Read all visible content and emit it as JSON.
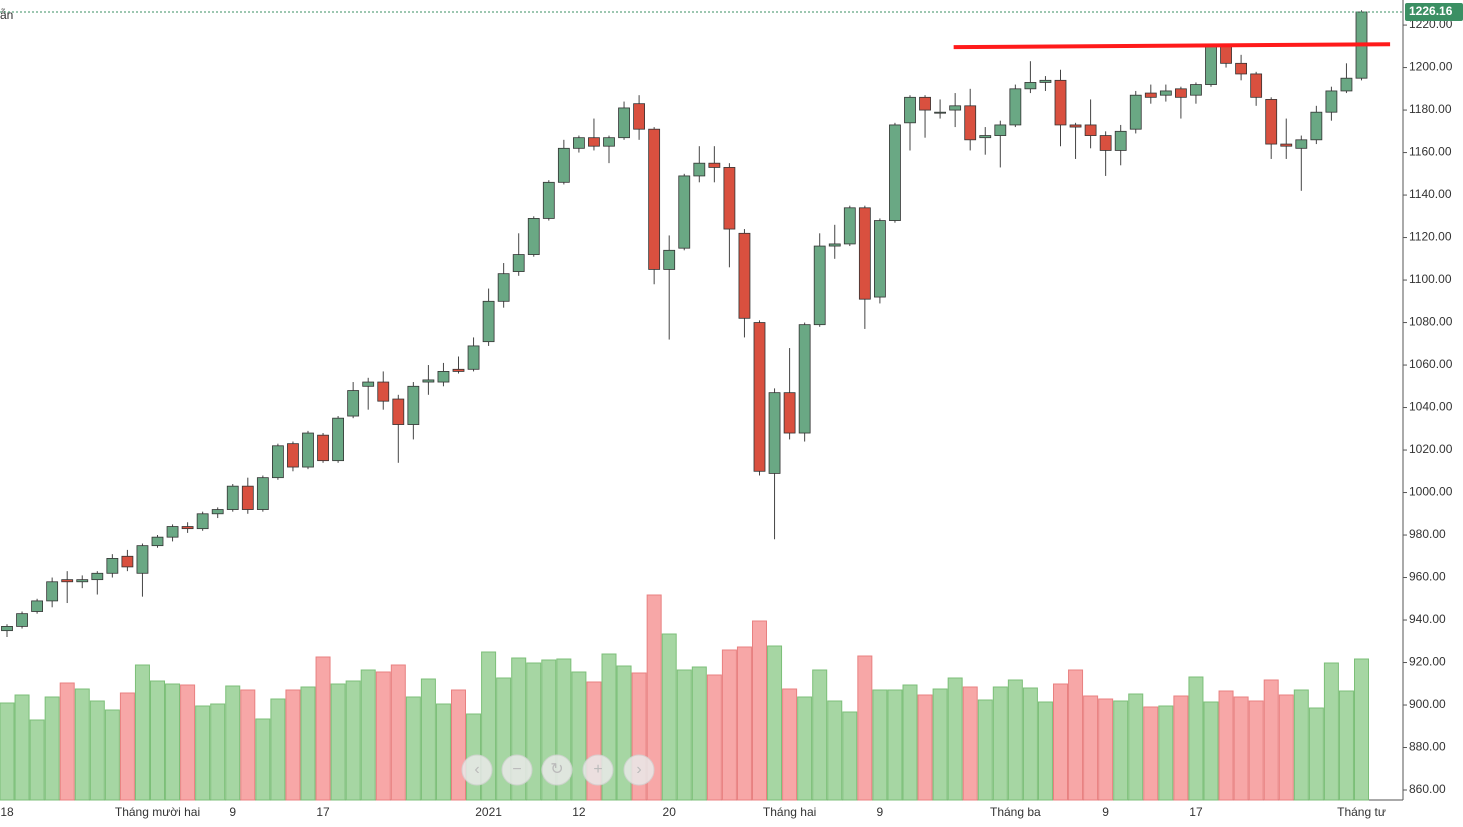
{
  "chart_data": {
    "type": "candlestick",
    "legend_text": "ẫn",
    "categories": [
      "18",
      null,
      null,
      null,
      null,
      null,
      null,
      null,
      null,
      null,
      "Tháng mười hai",
      null,
      null,
      null,
      null,
      "9",
      null,
      null,
      null,
      null,
      null,
      "17",
      null,
      null,
      null,
      null,
      null,
      null,
      null,
      null,
      null,
      null,
      "2021",
      null,
      null,
      null,
      null,
      null,
      "12",
      null,
      null,
      null,
      null,
      null,
      "20",
      null,
      null,
      null,
      null,
      null,
      null,
      null,
      "Tháng hai",
      null,
      null,
      null,
      null,
      null,
      "9",
      null,
      null,
      null,
      null,
      null,
      null,
      null,
      null,
      "Tháng ba",
      null,
      null,
      null,
      null,
      null,
      "9",
      null,
      null,
      null,
      null,
      null,
      "17",
      null,
      null,
      null,
      null,
      null,
      null,
      null,
      null,
      null,
      null,
      "Tháng tư"
    ],
    "series": [
      {
        "open": [
          935,
          937,
          944,
          949,
          959,
          958,
          959,
          962,
          970,
          962,
          975,
          979,
          984,
          983,
          990,
          992,
          1003,
          992,
          1007,
          1023,
          1012,
          1027,
          1015,
          1036,
          1050,
          1052,
          1044,
          1032,
          1052,
          1052,
          1058,
          1058,
          1071,
          1090,
          1104,
          1112,
          1129,
          1146,
          1162,
          1167,
          1163,
          1167,
          1183,
          1171,
          1105,
          1115,
          1149,
          1155,
          1153,
          1122,
          1080,
          1009,
          1047,
          1028,
          1079,
          1116,
          1117,
          1134,
          1092,
          1128,
          1174,
          1186,
          1179,
          1180,
          1182,
          1167,
          1168,
          1173,
          1190,
          1193,
          1194,
          1173,
          1173,
          1168,
          1161,
          1171,
          1188,
          1187,
          1190,
          1187,
          1192,
          1210,
          1202,
          1197,
          1185,
          1164,
          1162,
          1166,
          1179,
          1189,
          1195
        ],
        "high": [
          938,
          944,
          950,
          960,
          963,
          961,
          963,
          971,
          973,
          976,
          980,
          985,
          986,
          991,
          993,
          1004,
          1007,
          1008,
          1023,
          1024,
          1029,
          1028,
          1036,
          1052,
          1054,
          1057,
          1046,
          1052,
          1060,
          1061,
          1064,
          1073,
          1096,
          1108,
          1122,
          1130,
          1147,
          1166,
          1168,
          1176,
          1168,
          1184,
          1187,
          1172,
          1121,
          1150,
          1163,
          1163,
          1155,
          1124,
          1081,
          1049,
          1068,
          1080,
          1122,
          1126,
          1135,
          1135,
          1129,
          1174,
          1187,
          1187,
          1185,
          1188,
          1190,
          1172,
          1175,
          1192,
          1203,
          1196,
          1199,
          1174,
          1185,
          1170,
          1173,
          1189,
          1192,
          1192,
          1191,
          1193,
          1211,
          1211,
          1206,
          1198,
          1186,
          1176,
          1168,
          1182,
          1191,
          1202,
          1227
        ],
        "low": [
          932,
          936,
          943,
          946,
          948,
          955,
          952,
          960,
          963,
          951,
          974,
          977,
          981,
          982,
          988,
          991,
          990,
          991,
          1006,
          1010,
          1011,
          1014,
          1014,
          1035,
          1039,
          1039,
          1014,
          1025,
          1046,
          1050,
          1056,
          1057,
          1069,
          1087,
          1102,
          1111,
          1128,
          1145,
          1160,
          1161,
          1155,
          1166,
          1166,
          1098,
          1072,
          1114,
          1146,
          1146,
          1106,
          1073,
          1008,
          978,
          1025,
          1024,
          1078,
          1110,
          1116,
          1077,
          1089,
          1127,
          1161,
          1167,
          1176,
          1172,
          1161,
          1159,
          1153,
          1172,
          1188,
          1189,
          1163,
          1157,
          1162,
          1149,
          1154,
          1169,
          1183,
          1184,
          1176,
          1183,
          1191,
          1200,
          1194,
          1182,
          1157,
          1157,
          1142,
          1164,
          1175,
          1188,
          1194
        ],
        "close": [
          937,
          943,
          949,
          958,
          958,
          959,
          962,
          969,
          965,
          975,
          979,
          984,
          983,
          990,
          992,
          1003,
          992,
          1007,
          1022,
          1012,
          1028,
          1015,
          1035,
          1048,
          1052,
          1043,
          1032,
          1050,
          1053,
          1057,
          1057,
          1069,
          1090,
          1103,
          1112,
          1129,
          1146,
          1162,
          1167,
          1163,
          1167,
          1181,
          1171,
          1105,
          1114,
          1149,
          1155,
          1153,
          1124,
          1082,
          1010,
          1047,
          1028,
          1079,
          1116,
          1117,
          1134,
          1091,
          1128,
          1173,
          1186,
          1180,
          1179,
          1182,
          1166,
          1168,
          1173,
          1190,
          1193,
          1194,
          1173,
          1172,
          1168,
          1161,
          1170,
          1187,
          1186,
          1189,
          1186,
          1192,
          1210,
          1202,
          1197,
          1186,
          1164,
          1163,
          1166,
          1179,
          1189,
          1195,
          1226.16
        ],
        "up_color": "#6aa884",
        "down_color": "#d9503f"
      }
    ],
    "volume": [
      97,
      105,
      80,
      103,
      117,
      111,
      99,
      90,
      107,
      135,
      119,
      116,
      115,
      94,
      96,
      114,
      110,
      81,
      101,
      110,
      113,
      143,
      116,
      119,
      130,
      128,
      135,
      103,
      121,
      96,
      110,
      86,
      148,
      122,
      142,
      137,
      140,
      141,
      128,
      118,
      146,
      134,
      127,
      205,
      166,
      130,
      133,
      125,
      150,
      153,
      179,
      154,
      111,
      103,
      130,
      99,
      88,
      144,
      110,
      110,
      115,
      105,
      111,
      122,
      113,
      100,
      113,
      120,
      112,
      98,
      116,
      130,
      104,
      101,
      99,
      106,
      93,
      94,
      104,
      123,
      98,
      109,
      103,
      99,
      120,
      105,
      110,
      92,
      137,
      109,
      141
    ],
    "volume_up_color": "#a6d6a3",
    "volume_down_color": "#f7a7a7",
    "ylim": [
      855.3,
      1231.8
    ],
    "yticks": [
      {
        "value": 860,
        "label": "860.00"
      },
      {
        "value": 880,
        "label": "880.00"
      },
      {
        "value": 900,
        "label": "900.00"
      },
      {
        "value": 920,
        "label": "920.00"
      },
      {
        "value": 940,
        "label": "940.00"
      },
      {
        "value": 960,
        "label": "960.00"
      },
      {
        "value": 980,
        "label": "980.00"
      },
      {
        "value": 1000,
        "label": "1000.00"
      },
      {
        "value": 1020,
        "label": "1020.00"
      },
      {
        "value": 1040,
        "label": "1040.00"
      },
      {
        "value": 1060,
        "label": "1060.00"
      },
      {
        "value": 1080,
        "label": "1080.00"
      },
      {
        "value": 1100,
        "label": "1100.00"
      },
      {
        "value": 1120,
        "label": "1120.00"
      },
      {
        "value": 1140,
        "label": "1140.00"
      },
      {
        "value": 1160,
        "label": "1160.00"
      },
      {
        "value": 1180,
        "label": "1180.00"
      },
      {
        "value": 1200,
        "label": "1200.00"
      },
      {
        "value": 1220,
        "label": "1220.00"
      }
    ],
    "trendline": {
      "x": [
        62.9,
        91.9
      ],
      "y": [
        1209.6,
        1211
      ],
      "color": "#ff1a1a"
    },
    "price_line_color": "#3b8f63"
  }
}
